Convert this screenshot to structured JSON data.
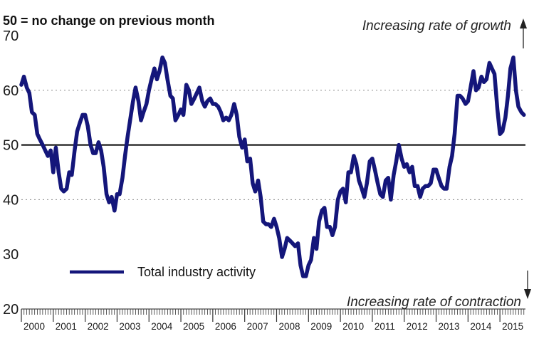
{
  "chart_data": {
    "type": "line",
    "title": "50 = no change on previous month",
    "annotations": {
      "top": "Increasing rate of growth",
      "bottom": "Increasing rate of contraction"
    },
    "ylim": [
      20,
      70
    ],
    "yticks": [
      20,
      30,
      40,
      50,
      60,
      70
    ],
    "reference_line": 50,
    "grid": "dotted at 40 and 60",
    "legend_position": "bottom-left",
    "colors": {
      "series": "#14167a",
      "reference": "#000000",
      "grid": "#8a8a8a"
    },
    "x_years": [
      "2000",
      "2001",
      "2002",
      "2003",
      "2004",
      "2005",
      "2006",
      "2007",
      "2008",
      "2009",
      "2010",
      "2011",
      "2012",
      "2013",
      "2014",
      "2015"
    ],
    "series": [
      {
        "name": "Total industry activity",
        "points": [
          [
            2000.0,
            61
          ],
          [
            2000.08,
            62.5
          ],
          [
            2000.17,
            60.5
          ],
          [
            2000.25,
            59.5
          ],
          [
            2000.33,
            56
          ],
          [
            2000.42,
            55.5
          ],
          [
            2000.5,
            52
          ],
          [
            2000.58,
            51
          ],
          [
            2000.67,
            50
          ],
          [
            2000.75,
            49
          ],
          [
            2000.83,
            48
          ],
          [
            2000.92,
            49
          ],
          [
            2001.0,
            45
          ],
          [
            2001.08,
            49.5
          ],
          [
            2001.17,
            45
          ],
          [
            2001.25,
            42
          ],
          [
            2001.33,
            41.5
          ],
          [
            2001.42,
            42
          ],
          [
            2001.5,
            45
          ],
          [
            2001.58,
            44.5
          ],
          [
            2001.67,
            49
          ],
          [
            2001.75,
            52.5
          ],
          [
            2001.83,
            54
          ],
          [
            2001.92,
            55.5
          ],
          [
            2002.0,
            55.5
          ],
          [
            2002.08,
            53.5
          ],
          [
            2002.17,
            50
          ],
          [
            2002.25,
            48.5
          ],
          [
            2002.33,
            48.5
          ],
          [
            2002.42,
            50.5
          ],
          [
            2002.5,
            49
          ],
          [
            2002.58,
            46
          ],
          [
            2002.67,
            41
          ],
          [
            2002.75,
            39.5
          ],
          [
            2002.83,
            40.5
          ],
          [
            2002.92,
            38
          ],
          [
            2003.0,
            41
          ],
          [
            2003.08,
            41
          ],
          [
            2003.17,
            44
          ],
          [
            2003.25,
            48
          ],
          [
            2003.33,
            51.5
          ],
          [
            2003.42,
            55
          ],
          [
            2003.5,
            58
          ],
          [
            2003.58,
            60.5
          ],
          [
            2003.67,
            58
          ],
          [
            2003.75,
            54.5
          ],
          [
            2003.83,
            56
          ],
          [
            2003.92,
            57.5
          ],
          [
            2004.0,
            60
          ],
          [
            2004.08,
            62
          ],
          [
            2004.17,
            64
          ],
          [
            2004.25,
            62
          ],
          [
            2004.33,
            63.5
          ],
          [
            2004.42,
            66
          ],
          [
            2004.5,
            65
          ],
          [
            2004.58,
            62
          ],
          [
            2004.67,
            59
          ],
          [
            2004.75,
            58.5
          ],
          [
            2004.83,
            54.5
          ],
          [
            2004.92,
            55.5
          ],
          [
            2005.0,
            56.5
          ],
          [
            2005.08,
            55.5
          ],
          [
            2005.17,
            61
          ],
          [
            2005.25,
            60
          ],
          [
            2005.33,
            57.5
          ],
          [
            2005.42,
            58.5
          ],
          [
            2005.5,
            59.5
          ],
          [
            2005.58,
            60.5
          ],
          [
            2005.67,
            58
          ],
          [
            2005.75,
            57
          ],
          [
            2005.83,
            58
          ],
          [
            2005.92,
            58.5
          ],
          [
            2006.0,
            57.5
          ],
          [
            2006.08,
            57.5
          ],
          [
            2006.17,
            57
          ],
          [
            2006.25,
            56
          ],
          [
            2006.33,
            54.5
          ],
          [
            2006.42,
            55
          ],
          [
            2006.5,
            54.5
          ],
          [
            2006.58,
            55.5
          ],
          [
            2006.67,
            57.5
          ],
          [
            2006.75,
            55.5
          ],
          [
            2006.83,
            51.5
          ],
          [
            2006.92,
            49.5
          ],
          [
            2007.0,
            51
          ],
          [
            2007.08,
            47
          ],
          [
            2007.17,
            47.5
          ],
          [
            2007.25,
            43
          ],
          [
            2007.33,
            41.5
          ],
          [
            2007.42,
            43.5
          ],
          [
            2007.5,
            40.5
          ],
          [
            2007.58,
            36
          ],
          [
            2007.67,
            35.5
          ],
          [
            2007.75,
            35.5
          ],
          [
            2007.83,
            35
          ],
          [
            2007.92,
            36.5
          ],
          [
            2008.0,
            35
          ],
          [
            2008.08,
            33
          ],
          [
            2008.17,
            29.5
          ],
          [
            2008.25,
            31
          ],
          [
            2008.33,
            33
          ],
          [
            2008.42,
            32.5
          ],
          [
            2008.5,
            32
          ],
          [
            2008.58,
            31.5
          ],
          [
            2008.67,
            32
          ],
          [
            2008.75,
            28
          ],
          [
            2008.83,
            26
          ],
          [
            2008.92,
            26
          ],
          [
            2009.0,
            28
          ],
          [
            2009.08,
            29
          ],
          [
            2009.17,
            33
          ],
          [
            2009.25,
            31
          ],
          [
            2009.33,
            36
          ],
          [
            2009.42,
            38
          ],
          [
            2009.5,
            38.5
          ],
          [
            2009.58,
            35
          ],
          [
            2009.67,
            35
          ],
          [
            2009.75,
            33.5
          ],
          [
            2009.83,
            35
          ],
          [
            2009.92,
            40
          ],
          [
            2010.0,
            41.5
          ],
          [
            2010.08,
            42
          ],
          [
            2010.17,
            39.5
          ],
          [
            2010.25,
            45
          ],
          [
            2010.33,
            45
          ],
          [
            2010.42,
            48
          ],
          [
            2010.5,
            46.5
          ],
          [
            2010.58,
            43.5
          ],
          [
            2010.67,
            42
          ],
          [
            2010.75,
            40.5
          ],
          [
            2010.83,
            43
          ],
          [
            2010.92,
            47
          ],
          [
            2011.0,
            47.5
          ],
          [
            2011.08,
            45.5
          ],
          [
            2011.17,
            43
          ],
          [
            2011.25,
            41
          ],
          [
            2011.33,
            40.5
          ],
          [
            2011.42,
            43.5
          ],
          [
            2011.5,
            44
          ],
          [
            2011.58,
            40
          ],
          [
            2011.67,
            44.5
          ],
          [
            2011.75,
            47
          ],
          [
            2011.83,
            50
          ],
          [
            2011.92,
            47.5
          ],
          [
            2012.0,
            46
          ],
          [
            2012.08,
            46.5
          ],
          [
            2012.17,
            45
          ],
          [
            2012.25,
            46
          ],
          [
            2012.33,
            42.5
          ],
          [
            2012.42,
            42.5
          ],
          [
            2012.5,
            40.5
          ],
          [
            2012.58,
            42
          ],
          [
            2012.67,
            42.5
          ],
          [
            2012.75,
            42.5
          ],
          [
            2012.83,
            43
          ],
          [
            2012.92,
            45.5
          ],
          [
            2013.0,
            45.5
          ],
          [
            2013.08,
            44
          ],
          [
            2013.17,
            42.5
          ],
          [
            2013.25,
            42
          ],
          [
            2013.33,
            42
          ],
          [
            2013.42,
            46
          ],
          [
            2013.5,
            48
          ],
          [
            2013.58,
            52
          ],
          [
            2013.67,
            59
          ],
          [
            2013.75,
            59
          ],
          [
            2013.83,
            58.5
          ],
          [
            2013.92,
            57.5
          ],
          [
            2014.0,
            58
          ],
          [
            2014.08,
            60.5
          ],
          [
            2014.17,
            63.5
          ],
          [
            2014.25,
            60
          ],
          [
            2014.33,
            60.5
          ],
          [
            2014.42,
            62.5
          ],
          [
            2014.5,
            61.5
          ],
          [
            2014.58,
            62
          ],
          [
            2014.67,
            65
          ],
          [
            2014.75,
            64
          ],
          [
            2014.83,
            63
          ],
          [
            2014.92,
            56.5
          ],
          [
            2015.0,
            52
          ],
          [
            2015.08,
            52.5
          ],
          [
            2015.17,
            55
          ],
          [
            2015.25,
            59
          ],
          [
            2015.33,
            64
          ],
          [
            2015.42,
            66
          ],
          [
            2015.5,
            60
          ],
          [
            2015.58,
            57
          ],
          [
            2015.67,
            56
          ],
          [
            2015.75,
            55.5
          ]
        ]
      }
    ]
  }
}
